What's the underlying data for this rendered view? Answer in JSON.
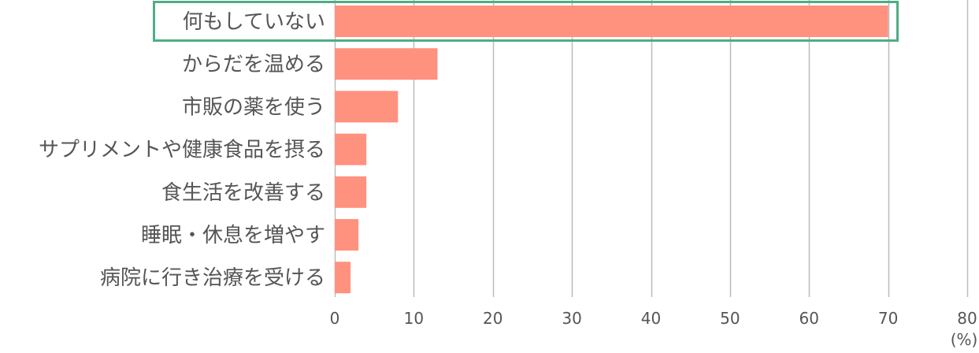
{
  "chart_data": {
    "type": "bar",
    "orientation": "horizontal",
    "categories": [
      "何もしていない",
      "からだを温める",
      "市販の薬を使う",
      "サプリメントや健康食品を摂る",
      "食生活を改善する",
      "睡眠・休息を増やす",
      "病院に行き治療を受ける"
    ],
    "values": [
      70,
      13,
      8,
      4,
      4,
      3,
      2
    ],
    "xlim": [
      0,
      80
    ],
    "xticks": [
      "0",
      "10",
      "20",
      "30",
      "40",
      "50",
      "60",
      "70",
      "80"
    ],
    "unit": "(%)",
    "grid": true,
    "highlight_index": 0,
    "colors": {
      "bar": "#FF917F",
      "highlight_border": "#4FAD85",
      "grid": "#BBBBBB",
      "text": "#555555"
    }
  }
}
